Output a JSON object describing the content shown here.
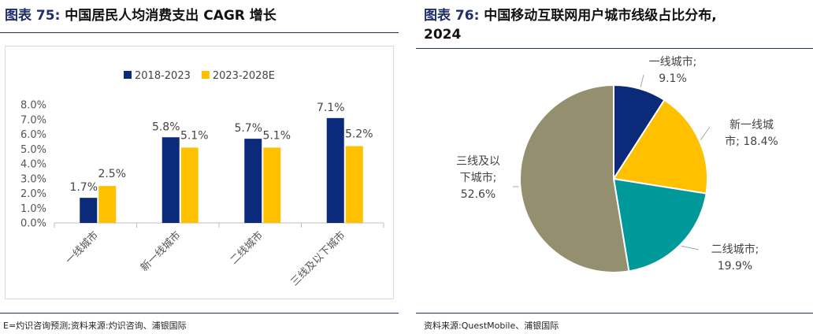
{
  "left": {
    "label": "图表 75:",
    "title": "中国居民人均消费支出 CAGR 增长",
    "source": "E=灼识咨询预测;资料来源:灼识咨询、浦银国际"
  },
  "right": {
    "label": "图表 76:",
    "title": "中国移动互联网用户城市线级占比分布,",
    "title_line2": "2024",
    "source": "资料来源:QuestMobile、浦银国际"
  },
  "colors": {
    "navy": "#0b2a7a",
    "gold": "#ffc000",
    "teal": "#00999a",
    "olive": "#948f6e",
    "rule": "#1f2d6b"
  },
  "chart_data": [
    {
      "type": "bar",
      "categories": [
        "一线城市",
        "新一线城市",
        "二线城市",
        "三线及以下城市"
      ],
      "series": [
        {
          "name": "2018-2023",
          "values": [
            1.7,
            5.8,
            5.7,
            7.1
          ],
          "labels": [
            "1.7%",
            "5.8%",
            "5.7%",
            "7.1%"
          ],
          "color": "#0b2a7a"
        },
        {
          "name": "2023-2028E",
          "values": [
            2.5,
            5.1,
            5.1,
            5.2
          ],
          "labels": [
            "2.5%",
            "5.1%",
            "5.1%",
            "5.2%"
          ],
          "color": "#ffc000"
        }
      ],
      "ylim": [
        0,
        8
      ],
      "yticks": [
        "0.0%",
        "1.0%",
        "2.0%",
        "3.0%",
        "4.0%",
        "5.0%",
        "6.0%",
        "7.0%",
        "8.0%"
      ],
      "legend": "top",
      "grid": false
    },
    {
      "type": "pie",
      "categories": [
        "一线城市",
        "新一线城市",
        "二线城市",
        "三线及以下城市"
      ],
      "values": [
        9.1,
        18.4,
        19.9,
        52.6
      ],
      "labels": [
        [
          "一线城市;",
          "9.1%"
        ],
        [
          "新一线城",
          "市; 18.4%"
        ],
        [
          "二线城市;",
          "19.9%"
        ],
        [
          "三线及以",
          "下城市;",
          "52.6%"
        ]
      ],
      "colors": [
        "#0b2a7a",
        "#ffc000",
        "#00999a",
        "#948f6e"
      ]
    }
  ]
}
